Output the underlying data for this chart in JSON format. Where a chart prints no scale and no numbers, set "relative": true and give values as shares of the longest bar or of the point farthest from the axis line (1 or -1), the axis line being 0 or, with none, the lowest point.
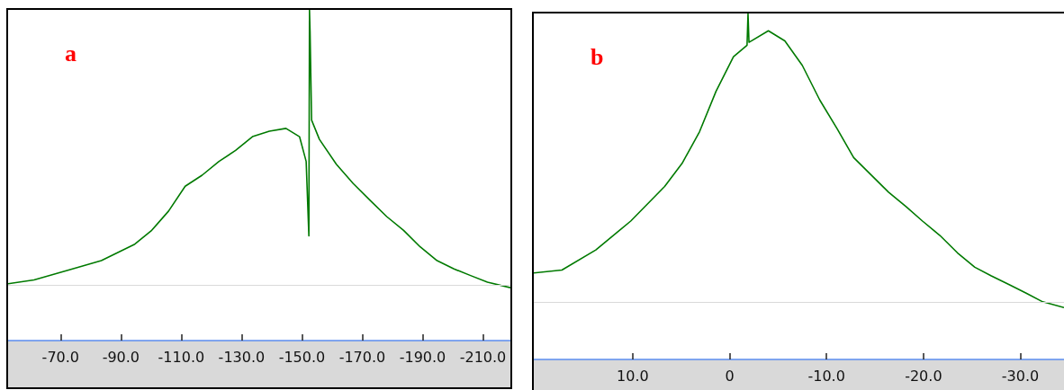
{
  "chart_data": [
    {
      "type": "line",
      "title": "a",
      "relative": true,
      "xlim": [
        -52.6,
        -219.1
      ],
      "xticks": [
        {
          "value": -70,
          "label": "-70.0"
        },
        {
          "value": -90,
          "label": "-90.0"
        },
        {
          "value": -110,
          "label": "-110.0"
        },
        {
          "value": -130,
          "label": "-130.0"
        },
        {
          "value": -150,
          "label": "-150.0"
        },
        {
          "value": -170,
          "label": "-170.0"
        },
        {
          "value": -190,
          "label": "-190.0"
        },
        {
          "value": -210,
          "label": "-210.0"
        }
      ],
      "ref_lines": [
        {
          "axis": "y",
          "value": 0,
          "color": "#d9d9d9"
        }
      ],
      "series": [
        {
          "color": "#007a00",
          "x": [
            -52.6,
            -61.2,
            -72.4,
            -83.5,
            -94.6,
            -100.2,
            -105.8,
            -111.3,
            -116.9,
            -122.5,
            -128.0,
            -133.6,
            -139.2,
            -144.7,
            -149.2,
            -151.4,
            -152.3,
            -152.5,
            -152.7,
            -153.2,
            -155.8,
            -161.4,
            -167.0,
            -172.5,
            -178.1,
            -183.7,
            -189.2,
            -194.8,
            -200.4,
            -205.9,
            -211.5,
            -219.1
          ],
          "values": [
            0.006,
            0.02,
            0.055,
            0.09,
            0.15,
            0.2,
            0.27,
            0.36,
            0.4,
            0.45,
            0.49,
            0.54,
            0.56,
            0.57,
            0.54,
            0.45,
            0.18,
            1.0,
            0.92,
            0.6,
            0.53,
            0.44,
            0.37,
            0.31,
            0.25,
            0.2,
            0.14,
            0.09,
            0.06,
            0.036,
            0.012,
            -0.008
          ]
        }
      ]
    },
    {
      "type": "line",
      "title": "b",
      "relative": true,
      "xlim": [
        20.2,
        -34.5
      ],
      "xticks": [
        {
          "value": 10,
          "label": "10.0"
        },
        0,
        {
          "value": -10,
          "label": "-10.0"
        },
        {
          "value": -20,
          "label": "-20.0"
        },
        {
          "value": -30,
          "label": "-30.0"
        }
      ],
      "ref_lines": [
        {
          "axis": "y",
          "value": 0,
          "color": "#d9d9d9"
        }
      ],
      "series": [
        {
          "color": "#007a00",
          "x": [
            20.2,
            17.3,
            13.8,
            10.2,
            6.7,
            4.9,
            3.1,
            1.4,
            -0.4,
            -1.8,
            -1.9,
            -2.0,
            -4.0,
            -5.7,
            -7.5,
            -9.3,
            -11.1,
            -12.8,
            -14.6,
            -16.4,
            -18.2,
            -19.9,
            -21.7,
            -23.5,
            -25.3,
            -27.0,
            -28.8,
            -30.6,
            -32.3,
            -34.5
          ],
          "values": [
            0.1,
            0.11,
            0.18,
            0.28,
            0.4,
            0.48,
            0.59,
            0.73,
            0.85,
            0.89,
            1.0,
            0.9,
            0.94,
            0.905,
            0.82,
            0.7,
            0.6,
            0.5,
            0.44,
            0.38,
            0.33,
            0.28,
            0.23,
            0.17,
            0.12,
            0.09,
            0.06,
            0.03,
            0.0,
            -0.02
          ]
        }
      ]
    }
  ]
}
